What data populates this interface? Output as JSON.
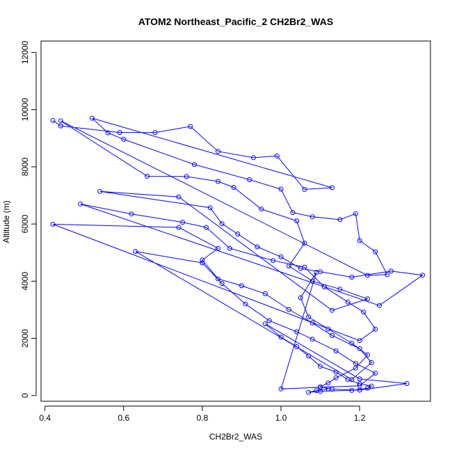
{
  "chart_data": {
    "type": "line",
    "title": "ATOM2 Northeast_Pacific_2 CH2Br2_WAS",
    "xlabel": "CH2Br2_WAS",
    "ylabel": "Altitude (m)",
    "xlim": [
      0.39,
      1.38
    ],
    "ylim": [
      -200,
      12400
    ],
    "x_ticks": [
      0.4,
      0.6,
      0.8,
      1.0,
      1.2
    ],
    "x_tick_labels": [
      "0.4",
      "0.6",
      "0.8",
      "1.0",
      "1.2"
    ],
    "y_ticks": [
      0,
      2000,
      4000,
      6000,
      8000,
      10000,
      12000
    ],
    "y_tick_labels": [
      "0",
      "2000",
      "4000",
      "6000",
      "8000",
      "10000",
      "12000"
    ],
    "grid": false,
    "legend": "none",
    "colors": {
      "series": "#0000ff",
      "axis": "#000000",
      "background": "#ffffff"
    },
    "series": [
      {
        "marker": "open-circle",
        "x": [
          0.42,
          0.44,
          0.59,
          0.68,
          0.77,
          0.84,
          0.93,
          0.99,
          1.06,
          1.13,
          0.52,
          0.56,
          0.6,
          0.78,
          0.92,
          1.0,
          1.03,
          1.08,
          1.15,
          1.19,
          1.2,
          1.24,
          1.27,
          1.22,
          0.44,
          0.66,
          0.76,
          0.84,
          0.88,
          0.95,
          1.04,
          1.06,
          1.02,
          1.08,
          1.15,
          1.22,
          1.13,
          0.74,
          0.54,
          0.82,
          0.85,
          0.89,
          0.94,
          1.0,
          1.05,
          1.1,
          1.18,
          1.28,
          1.36,
          1.25,
          0.49,
          0.62,
          0.75,
          0.81,
          0.87,
          0.98,
          1.06,
          1.11,
          1.17,
          1.21,
          1.24,
          1.2,
          0.42,
          0.74,
          0.84,
          0.8,
          0.84,
          0.9,
          0.96,
          1.02,
          1.08,
          1.13,
          1.2,
          1.23,
          1.18,
          0.63,
          0.8,
          0.85,
          0.91,
          0.97,
          1.04,
          1.08,
          1.14,
          1.19,
          1.24,
          1.2,
          1.1,
          1.0,
          1.09,
          1.05,
          1.07,
          1.12,
          1.18,
          1.22,
          1.19,
          1.14,
          1.12,
          1.1,
          1.13,
          1.2,
          1.32,
          1.2,
          0.96,
          1.0,
          1.04,
          1.07,
          1.1,
          1.14,
          1.17,
          1.2,
          1.23,
          1.22,
          1.18,
          1.1,
          1.07,
          1.09,
          1.12
        ],
        "y": [
          9620,
          9430,
          9200,
          9200,
          9410,
          8540,
          8320,
          8380,
          7210,
          7270,
          9700,
          9190,
          8960,
          8080,
          7550,
          7220,
          6400,
          6250,
          6150,
          6360,
          5420,
          5030,
          4230,
          4200,
          9610,
          7670,
          7660,
          7490,
          7280,
          6520,
          6110,
          5330,
          4530,
          4000,
          3720,
          3380,
          2980,
          6950,
          7140,
          6570,
          6010,
          5650,
          5200,
          4850,
          4440,
          4330,
          4140,
          4350,
          4210,
          3150,
          6700,
          6350,
          6060,
          5880,
          5150,
          4720,
          4490,
          3800,
          3270,
          2920,
          2320,
          1920,
          5990,
          5880,
          5150,
          4740,
          4080,
          3840,
          3560,
          3010,
          2540,
          2100,
          1640,
          1150,
          560,
          5040,
          4640,
          3920,
          3200,
          2620,
          2230,
          1970,
          1560,
          1120,
          780,
          340,
          290,
          230,
          4310,
          3420,
          2750,
          2330,
          1830,
          1420,
          960,
          620,
          440,
          300,
          220,
          190,
          420,
          580,
          2510,
          2040,
          1710,
          1380,
          1020,
          820,
          560,
          410,
          330,
          260,
          180,
          150,
          110,
          170,
          230
        ]
      }
    ]
  }
}
